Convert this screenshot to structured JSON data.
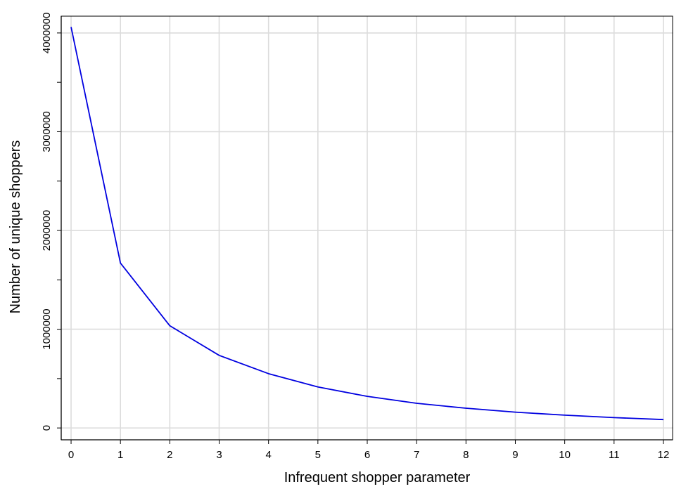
{
  "chart_data": {
    "type": "line",
    "title": "",
    "xlabel": "Infrequent shopper parameter",
    "ylabel": "Number of unique shoppers",
    "x": [
      0,
      1,
      2,
      3,
      4,
      5,
      6,
      7,
      8,
      9,
      10,
      11,
      12
    ],
    "series": [
      {
        "values": [
          4060000,
          1670000,
          1035000,
          735000,
          550000,
          415000,
          320000,
          250000,
          200000,
          160000,
          130000,
          105000,
          85000
        ],
        "color": "#0000e0"
      }
    ],
    "xlim": [
      -0.2,
      12.2
    ],
    "ylim": [
      -120000,
      4170000
    ],
    "xticks": [
      0,
      1,
      2,
      3,
      4,
      5,
      6,
      7,
      8,
      9,
      10,
      11,
      12
    ],
    "xtick_labels": [
      "0",
      "1",
      "2",
      "3",
      "4",
      "5",
      "6",
      "7",
      "8",
      "9",
      "10",
      "11",
      "12"
    ],
    "yticks_major": [
      0,
      1000000,
      2000000,
      3000000,
      4000000
    ],
    "ytick_labels": [
      "0",
      "1000000",
      "2000000",
      "3000000",
      "4000000"
    ],
    "yticks_minor": [
      500000,
      1500000,
      2500000,
      3500000
    ],
    "grid": true,
    "grid_color": "#dcdcdc",
    "axis_color": "#000000"
  }
}
